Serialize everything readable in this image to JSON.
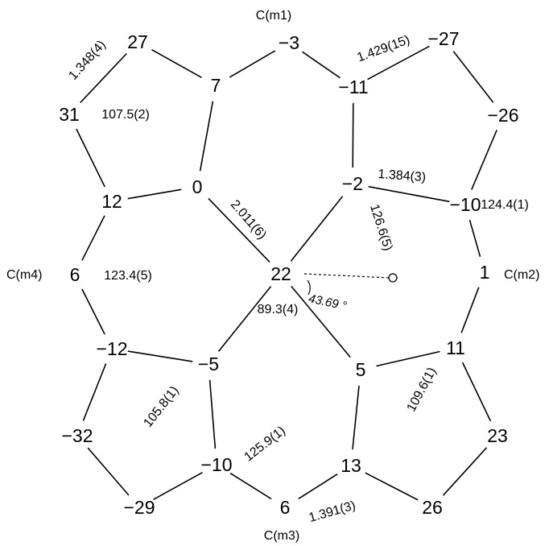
{
  "atoms": {
    "n_n1": "0",
    "n_ca1": "12",
    "n_cb1": "31",
    "n_cb1p": "27",
    "n_ca1p": "7",
    "n_cm1": "−3",
    "n_ca2": "−11",
    "n_cb2": "−27",
    "n_cb2p": "−26",
    "n_ca2p": "−10",
    "n_n2": "−2",
    "n_cm2": "1",
    "n_ca3": "11",
    "n_cb3": "23",
    "n_cb3p": "26",
    "n_ca3p": "13",
    "n_n3": "5",
    "n_cm3": "6",
    "n_ca4": "−10",
    "n_cb4": "−29",
    "n_cb4p": "−32",
    "n_ca4p": "−12",
    "n_n4": "−5",
    "n_cm4": "6",
    "n_metal": "22"
  },
  "meso_labels": {
    "cm1": "C(m1)",
    "cm2": "C(m2)",
    "cm3": "C(m3)",
    "cm4": "C(m4)"
  },
  "geometry_labels": {
    "cb_cb_bond": "1.348(4)",
    "ca_cm_bond": "1.429(15)",
    "n_ca_bond": "1.384(3)",
    "m_n_bond": "2.011(6)",
    "ca_cm_ca_bond": "1.391(3)",
    "angle_ca_n_ca": "107.5(2)",
    "angle_ca_cm_ca_m2": "124.4(1)",
    "angle_ca_cm_ca_m4": "123.4(5)",
    "angle_m_n_ca": "126.6(5)",
    "angle_n_m_n": "89.3(4)",
    "angle_ca_n_ca_2": "105.8(1)",
    "angle_ca_cm_ca_m3": "125.9(1)",
    "angle_ca_n_ca_3": "109.6(1)",
    "tilt_angle": "43.69 °"
  }
}
